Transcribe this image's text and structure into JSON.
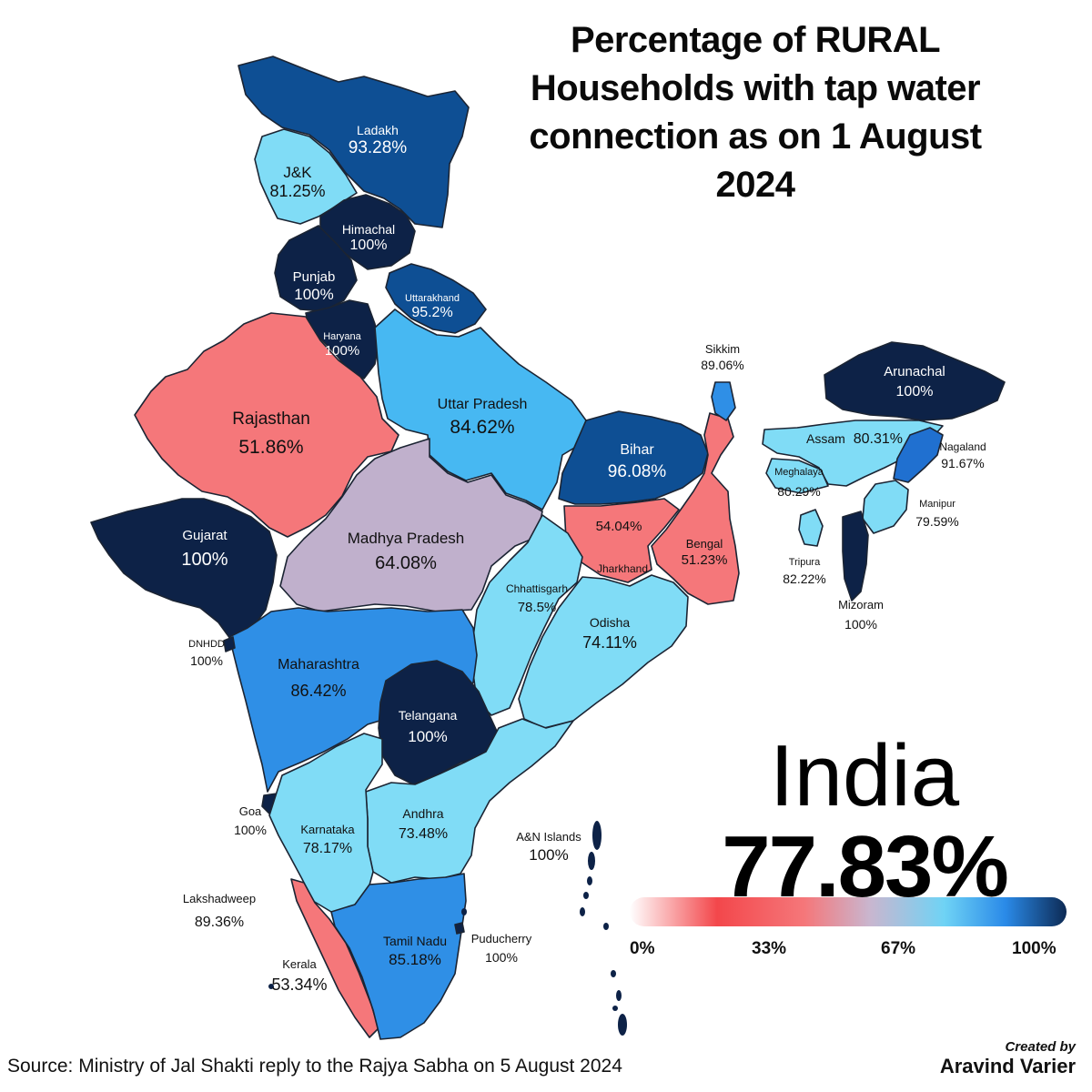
{
  "title": "Percentage of RURAL Households with tap water connection as on 1 August 2024",
  "colors": {
    "navy": "#0d2247",
    "dark_blue": "#0e4f94",
    "mid_blue": "#2784e0",
    "sky_blue": "#47b8f2",
    "light_cyan": "#80dcf6",
    "lilac": "#c0b0cc",
    "salmon": "#f5777a",
    "border": "#1b2433"
  },
  "states": [
    {
      "name": "Ladakh",
      "value": "93.28%"
    },
    {
      "name": "J&K",
      "value": "81.25%"
    },
    {
      "name": "Himachal",
      "value": "100%"
    },
    {
      "name": "Punjab",
      "value": "100%"
    },
    {
      "name": "Uttarakhand",
      "value": "95.2%"
    },
    {
      "name": "Haryana",
      "value": "100%"
    },
    {
      "name": "Rajasthan",
      "value": "51.86%"
    },
    {
      "name": "Uttar Pradesh",
      "value": "84.62%"
    },
    {
      "name": "Bihar",
      "value": "96.08%"
    },
    {
      "name": "Sikkim",
      "value": "89.06%"
    },
    {
      "name": "Arunachal",
      "value": "100%"
    },
    {
      "name": "Assam",
      "value": "80.31%"
    },
    {
      "name": "Nagaland",
      "value": "91.67%"
    },
    {
      "name": "Meghalaya",
      "value": "80.29%"
    },
    {
      "name": "Manipur",
      "value": "79.59%"
    },
    {
      "name": "Tripura",
      "value": "82.22%"
    },
    {
      "name": "Mizoram",
      "value": "100%"
    },
    {
      "name": "Gujarat",
      "value": "100%"
    },
    {
      "name": "Madhya Pradesh",
      "value": "64.08%"
    },
    {
      "name": "",
      "value": "54.04%"
    },
    {
      "name": "Jharkhand",
      "value": ""
    },
    {
      "name": "Bengal",
      "value": "51.23%"
    },
    {
      "name": "Chhattisgarh",
      "value": "78.5%"
    },
    {
      "name": "Odisha",
      "value": "74.11%"
    },
    {
      "name": "DNHDD",
      "value": "100%"
    },
    {
      "name": "Maharashtra",
      "value": "86.42%"
    },
    {
      "name": "Telangana",
      "value": "100%"
    },
    {
      "name": "Goa",
      "value": "100%"
    },
    {
      "name": "Karnataka",
      "value": "78.17%"
    },
    {
      "name": "Andhra",
      "value": "73.48%"
    },
    {
      "name": "A&N Islands",
      "value": "100%"
    },
    {
      "name": "Lakshadweep",
      "value": "89.36%"
    },
    {
      "name": "Puducherry",
      "value": "100%"
    },
    {
      "name": "Tamil Nadu",
      "value": "85.18%"
    },
    {
      "name": "Kerala",
      "value": "53.34%"
    }
  ],
  "national": {
    "name": "India",
    "value": "77.83%"
  },
  "legend": {
    "ticks": [
      "0%",
      "33%",
      "67%",
      "100%"
    ]
  },
  "source": "Source: Ministry of Jal Shakti reply to the Rajya Sabha on 5 August 2024",
  "credit": {
    "line1": "Created by",
    "line2": "Aravind Varier"
  }
}
